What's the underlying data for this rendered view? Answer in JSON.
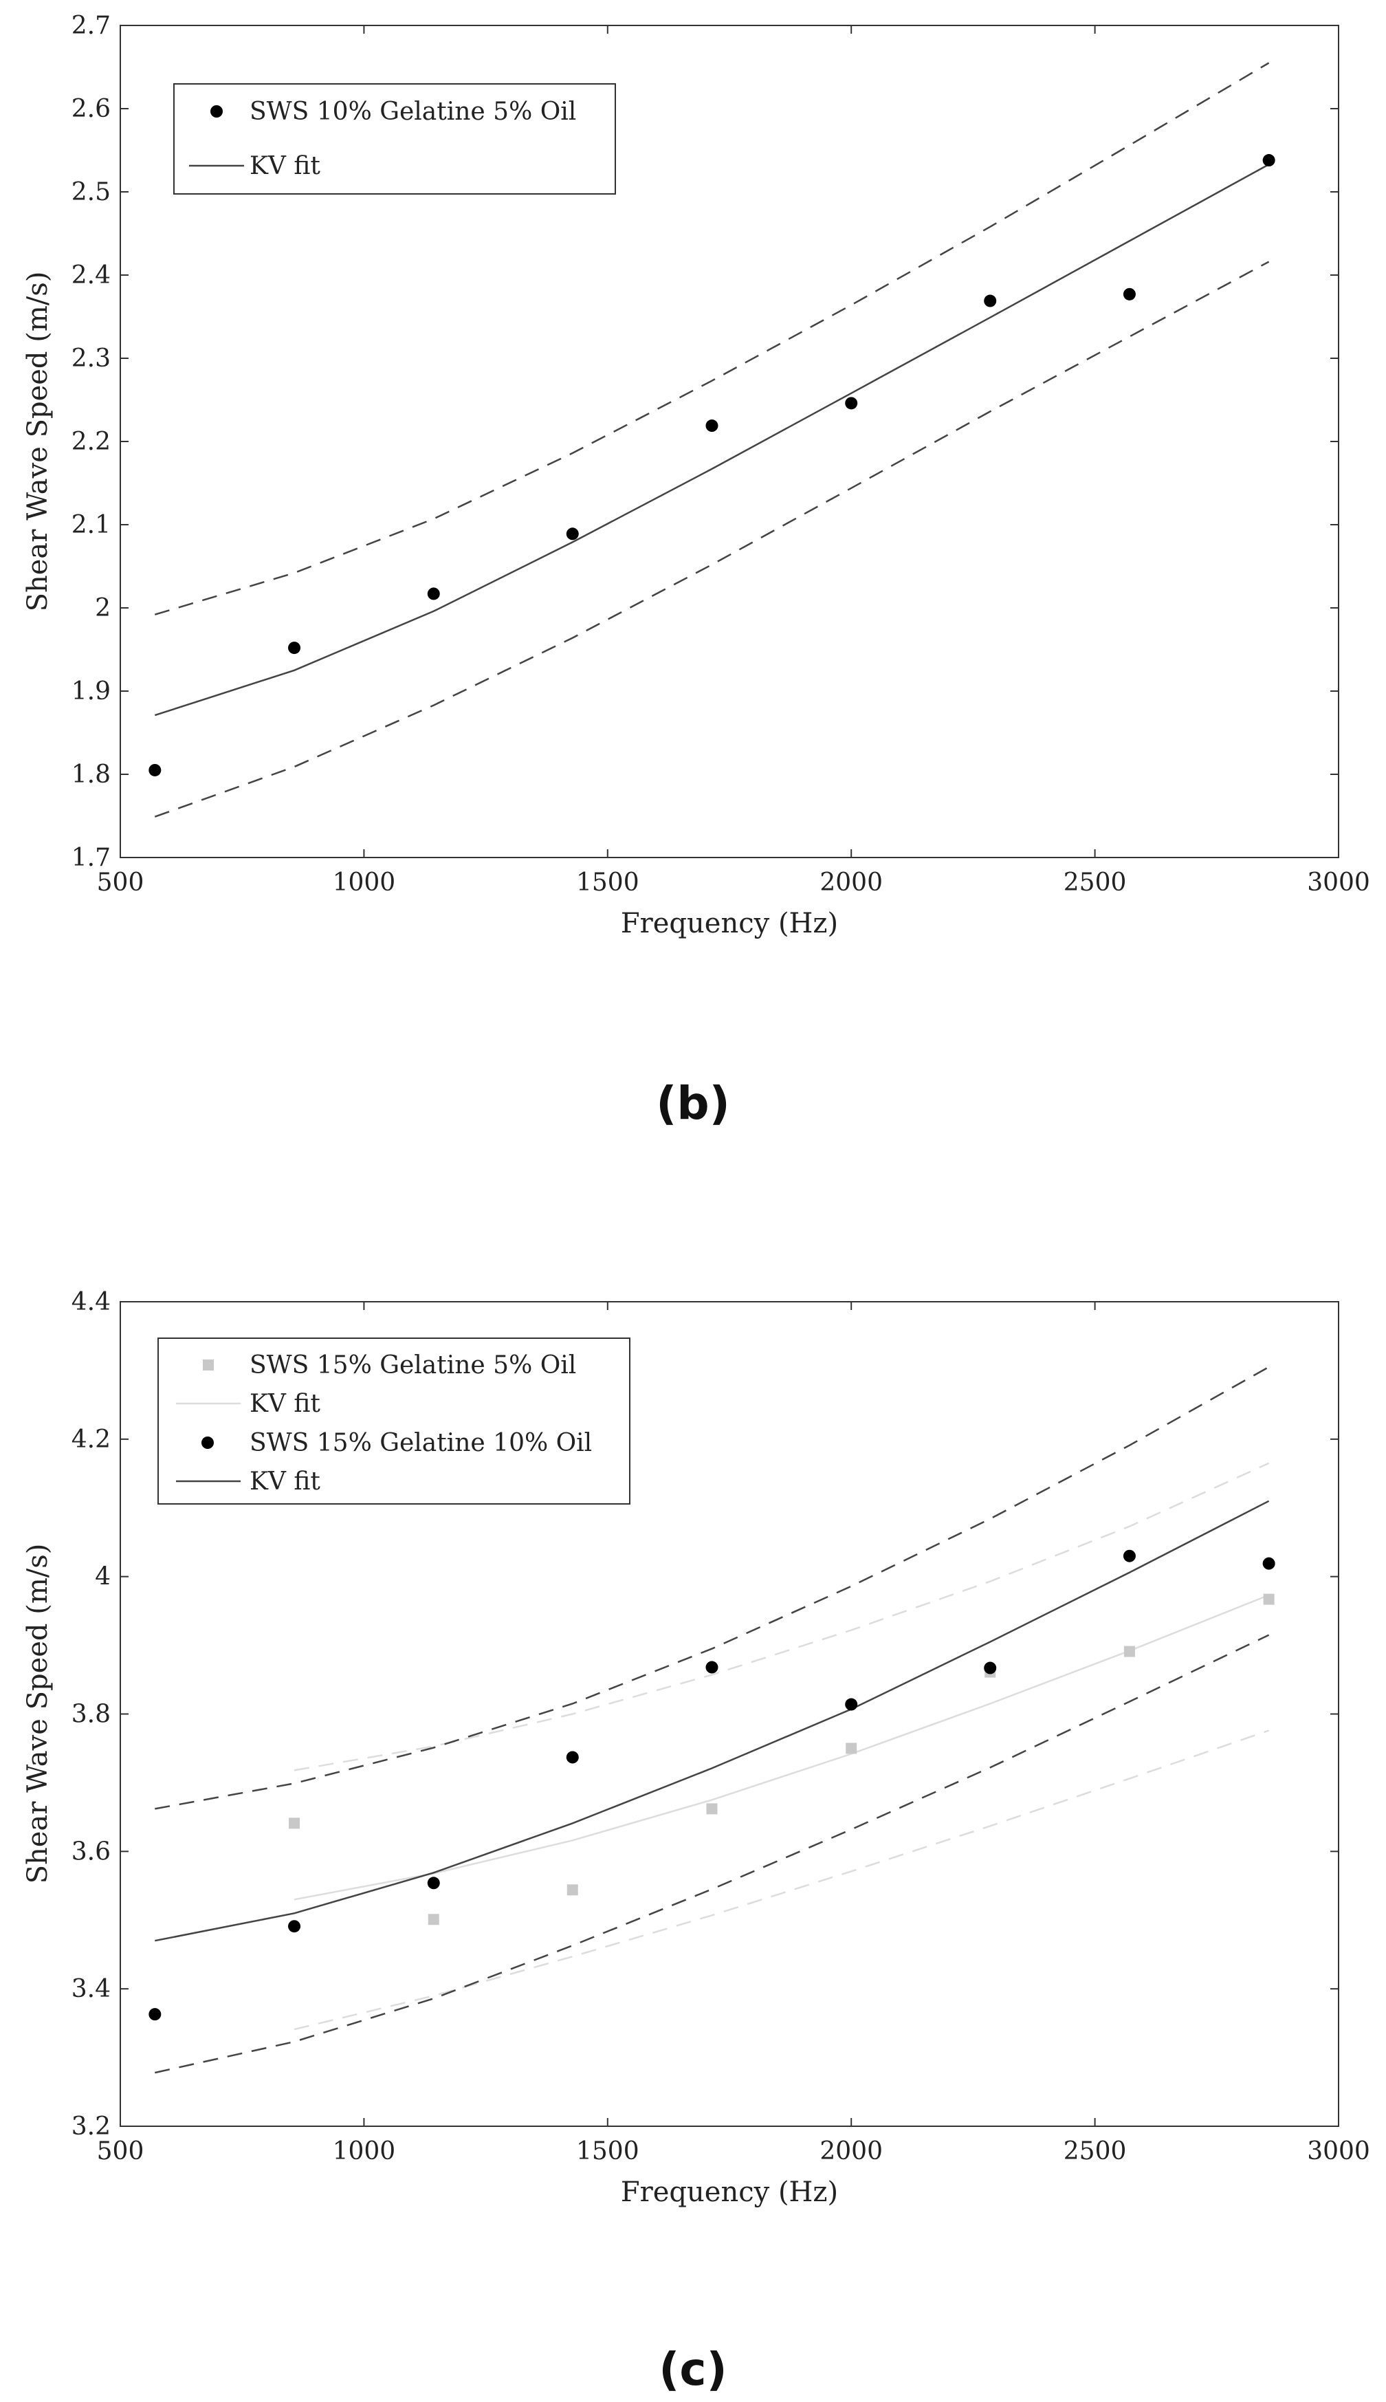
{
  "panels": [
    {
      "label": "(b)",
      "chart_data": {
        "type": "scatter",
        "xlabel": "Frequency (Hz)",
        "ylabel": "Shear Wave Speed (m/s)",
        "xlim": [
          500,
          3000
        ],
        "ylim": [
          1.7,
          2.7
        ],
        "xticks": [
          "500",
          "1000",
          "1500",
          "2000",
          "2500",
          "3000"
        ],
        "yticks": [
          "1.7",
          "1.8",
          "1.9",
          "2",
          "2.1",
          "2.2",
          "2.3",
          "2.4",
          "2.5",
          "2.6",
          "2.7"
        ],
        "grid": false,
        "legend_position": "top-left",
        "series": [
          {
            "name": "SWS 10% Gelatine 5% Oil",
            "kind": "markers",
            "marker": "circle",
            "color": "#000000",
            "x": [
              571,
              857,
              1143,
              1428,
              1714,
              2000,
              2285,
              2571,
              2857
            ],
            "y": [
              1.805,
              1.952,
              2.017,
              2.089,
              2.219,
              2.246,
              2.369,
              2.377,
              2.538
            ]
          },
          {
            "name": "KV fit",
            "kind": "line",
            "color": "#444444",
            "x": [
              571,
              857,
              1143,
              1428,
              1714,
              2000,
              2285,
              2571,
              2857
            ],
            "y": [
              1.871,
              1.925,
              1.996,
              2.079,
              2.167,
              2.258,
              2.349,
              2.441,
              2.533
            ]
          },
          {
            "kind": "dashed",
            "color": "#444444",
            "x": [
              571,
              857,
              1143,
              1428,
              1714,
              2000,
              2285,
              2571,
              2857
            ],
            "y": [
              1.992,
              2.042,
              2.107,
              2.186,
              2.273,
              2.364,
              2.458,
              2.556,
              2.655
            ]
          },
          {
            "kind": "dashed",
            "color": "#444444",
            "x": [
              571,
              857,
              1143,
              1428,
              1714,
              2000,
              2285,
              2571,
              2857
            ],
            "y": [
              1.749,
              1.809,
              1.883,
              1.964,
              2.052,
              2.144,
              2.236,
              2.326,
              2.416
            ]
          }
        ]
      }
    },
    {
      "label": "(c)",
      "chart_data": {
        "type": "scatter",
        "xlabel": "Frequency (Hz)",
        "ylabel": "Shear Wave Speed (m/s)",
        "xlim": [
          500,
          3000
        ],
        "ylim": [
          3.2,
          4.4
        ],
        "xticks": [
          "500",
          "1000",
          "1500",
          "2000",
          "2500",
          "3000"
        ],
        "yticks": [
          "3.2",
          "3.4",
          "3.6",
          "3.8",
          "4",
          "4.2",
          "4.4"
        ],
        "grid": false,
        "legend_position": "top-left",
        "series": [
          {
            "name": "SWS 15% Gelatine 5% Oil",
            "kind": "markers",
            "marker": "square",
            "color": "#c8c8c8",
            "x": [
              857,
              1143,
              1428,
              1714,
              2000,
              2285,
              2571,
              2857
            ],
            "y": [
              3.641,
              3.501,
              3.544,
              3.662,
              3.75,
              3.861,
              3.891,
              3.967
            ]
          },
          {
            "name": "KV fit",
            "kind": "line",
            "color": "#dddddd",
            "x": [
              857,
              1143,
              1428,
              1714,
              2000,
              2285,
              2571,
              2857
            ],
            "y": [
              3.53,
              3.568,
              3.616,
              3.675,
              3.742,
              3.815,
              3.892,
              3.973
            ]
          },
          {
            "kind": "dashed",
            "color": "#dddddd",
            "x": [
              857,
              1143,
              1428,
              1714,
              2000,
              2285,
              2571,
              2857
            ],
            "y": [
              3.718,
              3.753,
              3.8,
              3.857,
              3.922,
              3.993,
              4.073,
              4.165
            ]
          },
          {
            "kind": "dashed",
            "color": "#dddddd",
            "x": [
              857,
              1143,
              1428,
              1714,
              2000,
              2285,
              2571,
              2857
            ],
            "y": [
              3.341,
              3.39,
              3.447,
              3.507,
              3.571,
              3.637,
              3.706,
              3.776
            ]
          },
          {
            "name": "SWS 15% Gelatine 10% Oil",
            "kind": "markers",
            "marker": "circle",
            "color": "#000000",
            "x": [
              571,
              857,
              1143,
              1428,
              1714,
              2000,
              2285,
              2571,
              2857
            ],
            "y": [
              3.363,
              3.491,
              3.554,
              3.737,
              3.868,
              3.814,
              3.867,
              4.03,
              4.019
            ]
          },
          {
            "name": "KV fit",
            "kind": "line",
            "color": "#444444",
            "x": [
              571,
              857,
              1143,
              1428,
              1714,
              2000,
              2285,
              2571,
              2857
            ],
            "y": [
              3.47,
              3.51,
              3.569,
              3.641,
              3.721,
              3.807,
              3.905,
              4.006,
              4.11
            ]
          },
          {
            "kind": "dashed",
            "color": "#444444",
            "x": [
              571,
              857,
              1143,
              1428,
              1714,
              2000,
              2285,
              2571,
              2857
            ],
            "y": [
              3.662,
              3.699,
              3.751,
              3.815,
              3.895,
              3.986,
              4.084,
              4.191,
              4.305
            ]
          },
          {
            "kind": "dashed",
            "color": "#444444",
            "x": [
              571,
              857,
              1143,
              1428,
              1714,
              2000,
              2285,
              2571,
              2857
            ],
            "y": [
              3.278,
              3.323,
              3.386,
              3.463,
              3.545,
              3.632,
              3.722,
              3.818,
              3.915
            ]
          }
        ]
      }
    }
  ]
}
